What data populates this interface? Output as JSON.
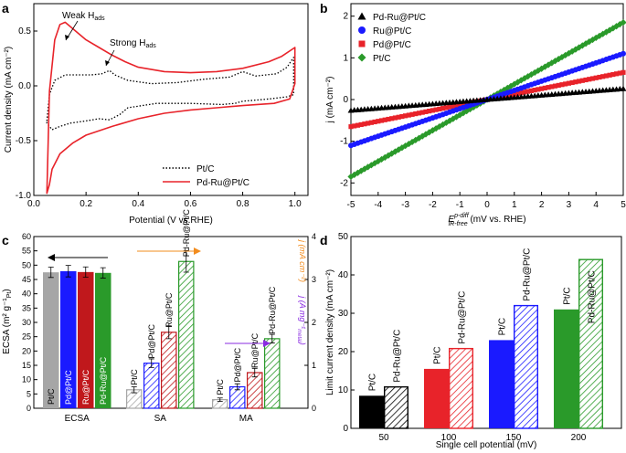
{
  "chart_data": [
    {
      "panel": "a",
      "type": "line",
      "xlabel": "Potential (V vs.RHE)",
      "ylabel": "Current density (mA cm⁻²)",
      "xlim": [
        0.0,
        1.05
      ],
      "ylim": [
        -1.0,
        0.75
      ],
      "xticks": [
        "0.0",
        "0.2",
        "0.4",
        "0.6",
        "0.8",
        "1.0"
      ],
      "yticks": [
        "-1.0",
        "-0.5",
        "0.0",
        "0.5"
      ],
      "annotations": [
        "Weak H",
        "ads",
        "Strong H",
        "ads"
      ],
      "series": [
        {
          "name": "Pt/C",
          "color": "#000000",
          "style": "dotted",
          "forward": [
            [
              0.05,
              -0.32
            ],
            [
              0.06,
              -0.08
            ],
            [
              0.08,
              0.05
            ],
            [
              0.12,
              0.1
            ],
            [
              0.17,
              0.1
            ],
            [
              0.22,
              0.1
            ],
            [
              0.26,
              0.11
            ],
            [
              0.29,
              0.14
            ],
            [
              0.31,
              0.1
            ],
            [
              0.36,
              0.05
            ],
            [
              0.45,
              0.02
            ],
            [
              0.55,
              0.03
            ],
            [
              0.65,
              0.06
            ],
            [
              0.75,
              0.08
            ],
            [
              0.8,
              0.13
            ],
            [
              0.85,
              0.09
            ],
            [
              0.93,
              0.11
            ],
            [
              0.97,
              0.17
            ],
            [
              0.995,
              0.26
            ]
          ],
          "reverse": [
            [
              0.995,
              0.26
            ],
            [
              0.995,
              -0.08
            ],
            [
              0.97,
              -0.1
            ],
            [
              0.9,
              -0.12
            ],
            [
              0.8,
              -0.14
            ],
            [
              0.77,
              -0.16
            ],
            [
              0.72,
              -0.17
            ],
            [
              0.6,
              -0.16
            ],
            [
              0.47,
              -0.16
            ],
            [
              0.36,
              -0.2
            ],
            [
              0.33,
              -0.26
            ],
            [
              0.29,
              -0.31
            ],
            [
              0.25,
              -0.3
            ],
            [
              0.2,
              -0.32
            ],
            [
              0.14,
              -0.34
            ],
            [
              0.1,
              -0.37
            ],
            [
              0.07,
              -0.4
            ],
            [
              0.05,
              -0.34
            ]
          ]
        },
        {
          "name": "Pd-Ru@Pt/C",
          "color": "#e8232a",
          "style": "solid",
          "forward": [
            [
              0.05,
              -0.98
            ],
            [
              0.06,
              -0.05
            ],
            [
              0.08,
              0.42
            ],
            [
              0.1,
              0.56
            ],
            [
              0.12,
              0.58
            ],
            [
              0.15,
              0.52
            ],
            [
              0.2,
              0.42
            ],
            [
              0.25,
              0.35
            ],
            [
              0.3,
              0.28
            ],
            [
              0.35,
              0.22
            ],
            [
              0.4,
              0.17
            ],
            [
              0.5,
              0.13
            ],
            [
              0.6,
              0.12
            ],
            [
              0.7,
              0.13
            ],
            [
              0.8,
              0.16
            ],
            [
              0.9,
              0.22
            ],
            [
              0.95,
              0.27
            ],
            [
              1.0,
              0.35
            ]
          ],
          "reverse": [
            [
              1.0,
              0.35
            ],
            [
              1.0,
              0.02
            ],
            [
              0.98,
              -0.12
            ],
            [
              0.92,
              -0.16
            ],
            [
              0.8,
              -0.18
            ],
            [
              0.7,
              -0.2
            ],
            [
              0.6,
              -0.22
            ],
            [
              0.5,
              -0.25
            ],
            [
              0.4,
              -0.3
            ],
            [
              0.3,
              -0.37
            ],
            [
              0.2,
              -0.45
            ],
            [
              0.15,
              -0.52
            ],
            [
              0.1,
              -0.62
            ],
            [
              0.07,
              -0.76
            ],
            [
              0.06,
              -0.9
            ],
            [
              0.05,
              -0.98
            ]
          ]
        }
      ],
      "legend": [
        "Pt/C",
        "Pd-Ru@Pt/C"
      ]
    },
    {
      "panel": "b",
      "type": "scatter",
      "xlabel": "E",
      "xlabel_sup": "p-diff",
      "xlabel_sub": "iR-free",
      "xlabel_tail": " (mV vs. RHE)",
      "ylabel": "j (mA cm⁻²)",
      "xlim": [
        -5,
        5
      ],
      "ylim": [
        -2.3,
        2.3
      ],
      "xticks": [
        "-5",
        "-4",
        "-3",
        "-2",
        "-1",
        "0",
        "1",
        "2",
        "3",
        "4",
        "5"
      ],
      "yticks": [
        "-2",
        "-1",
        "0",
        "1",
        "2"
      ],
      "series": [
        {
          "name": "Pd-Ru@Pt/C",
          "color": "#000000",
          "marker": "triangle",
          "slope": 0.052
        },
        {
          "name": "Ru@Pt/C",
          "color": "#1a1aff",
          "marker": "circle",
          "slope": 0.22
        },
        {
          "name": "Pd@Pt/C",
          "color": "#e8232a",
          "marker": "square",
          "slope": 0.13
        },
        {
          "name": "Pt/C",
          "color": "#2a9a2a",
          "marker": "diamond",
          "slope": 0.37
        }
      ]
    },
    {
      "panel": "c",
      "type": "bar",
      "groups": [
        "ECSA",
        "SA",
        "MA"
      ],
      "ylabel_left": "ECSA (m² g⁻¹",
      "ylabel_left_sub": "Pt",
      "ylabel_right_1": "j (mA cm⁻²)",
      "ylabel_right_2": "j (A mg⁻¹",
      "ylabel_right_2_sub": "metal",
      "ylim_left": [
        0,
        60
      ],
      "ylim_right": [
        0,
        4
      ],
      "yticks_left": [
        "0",
        "5",
        "10",
        "15",
        "20",
        "25",
        "30",
        "35",
        "40",
        "45",
        "50",
        "55",
        "60"
      ],
      "yticks_right": [
        "0",
        "1",
        "2",
        "3",
        "4"
      ],
      "series": [
        {
          "name": "Pt/C",
          "color": "#a6a6a6",
          "ECSA": 47.5,
          "SA": 0.43,
          "MA": 0.2
        },
        {
          "name": "Pd@Pt/C",
          "color": "#1a1aff",
          "ECSA": 47.9,
          "SA": 1.05,
          "MA": 0.5
        },
        {
          "name": "Ru@Pt/C",
          "color": "#c0181c",
          "ECSA": 47.6,
          "SA": 1.77,
          "MA": 0.83
        },
        {
          "name": "Pd-Ru@Pt/C",
          "color": "#2a9a2a",
          "ECSA": 47.3,
          "SA": 3.42,
          "MA": 1.62
        }
      ],
      "errors": {
        "ECSA": [
          1.8,
          2.0,
          1.8,
          1.8
        ],
        "SA": [
          0.07,
          0.1,
          0.15,
          0.25
        ],
        "MA": [
          0.04,
          0.07,
          0.1,
          0.1
        ]
      }
    },
    {
      "panel": "d",
      "type": "bar",
      "xlabel": "Single cell potential (mV)",
      "ylabel": "Limit current density (mA cm⁻²)",
      "categories": [
        "50",
        "100",
        "150",
        "200"
      ],
      "ylim": [
        0,
        50
      ],
      "yticks": [
        "0",
        "10",
        "20",
        "30",
        "40",
        "50"
      ],
      "series": [
        {
          "name": "Pt/C",
          "values": [
            8.5,
            15.5,
            23.0,
            31.0
          ]
        },
        {
          "name": "Pd-Ru@Pt/C",
          "values": [
            10.8,
            20.8,
            32.0,
            44.0
          ]
        }
      ],
      "colors": [
        "#000000",
        "#e8232a",
        "#1a1aff",
        "#2a9a2a"
      ]
    }
  ],
  "panel_labels": [
    "a",
    "b",
    "c",
    "d"
  ]
}
